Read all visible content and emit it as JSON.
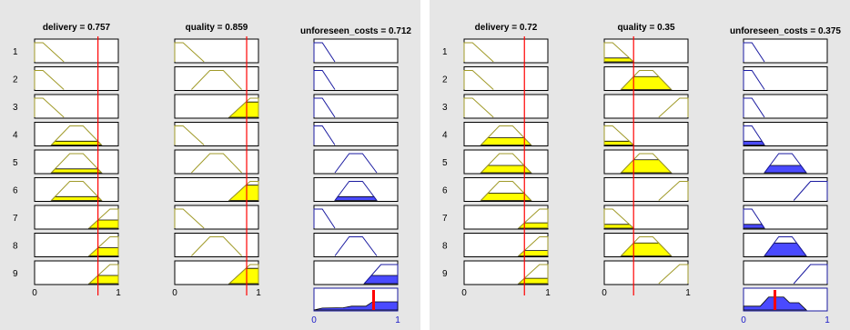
{
  "colors": {
    "background": "#e6e6e6",
    "input_fill": "#ffff00",
    "input_line": "#a09a28",
    "output_fill": "#4a4aff",
    "output_line": "#1a1aa0",
    "input_cursor": "#ff0000",
    "output_result_bar": "#ff0000"
  },
  "panels": [
    {
      "inputs": [
        {
          "name": "delivery",
          "header": "delivery = 0.757",
          "value": 0.757,
          "axis": {
            "min_label": "0",
            "max_label": "1",
            "range": [
              0,
              1
            ]
          },
          "mfs": [
            {
              "shape": [
                0,
                0,
                0.1,
                0.35
              ],
              "degree": 0
            },
            {
              "shape": [
                0,
                0,
                0.1,
                0.35
              ],
              "degree": 0
            },
            {
              "shape": [
                0,
                0,
                0.1,
                0.35
              ],
              "degree": 0
            },
            {
              "shape": [
                0.2,
                0.42,
                0.58,
                0.8
              ],
              "degree": 0.2
            },
            {
              "shape": [
                0.2,
                0.42,
                0.58,
                0.8
              ],
              "degree": 0.2
            },
            {
              "shape": [
                0.2,
                0.42,
                0.58,
                0.8
              ],
              "degree": 0.2
            },
            {
              "shape": [
                0.65,
                0.9,
                1,
                1
              ],
              "degree": 0.43
            },
            {
              "shape": [
                0.65,
                0.9,
                1,
                1
              ],
              "degree": 0.43
            },
            {
              "shape": [
                0.65,
                0.9,
                1,
                1
              ],
              "degree": 0.43
            }
          ]
        },
        {
          "name": "quality",
          "header": "quality = 0.859",
          "value": 0.859,
          "axis": {
            "min_label": "0",
            "max_label": "1",
            "range": [
              0,
              1
            ]
          },
          "mfs": [
            {
              "shape": [
                0,
                0,
                0.1,
                0.35
              ],
              "degree": 0
            },
            {
              "shape": [
                0.2,
                0.42,
                0.58,
                0.8
              ],
              "degree": 0
            },
            {
              "shape": [
                0.65,
                0.9,
                1,
                1
              ],
              "degree": 0.8
            },
            {
              "shape": [
                0,
                0,
                0.1,
                0.35
              ],
              "degree": 0
            },
            {
              "shape": [
                0.2,
                0.42,
                0.58,
                0.8
              ],
              "degree": 0
            },
            {
              "shape": [
                0.65,
                0.9,
                1,
                1
              ],
              "degree": 0.8
            },
            {
              "shape": [
                0,
                0,
                0.1,
                0.35
              ],
              "degree": 0
            },
            {
              "shape": [
                0.2,
                0.42,
                0.58,
                0.8
              ],
              "degree": 0
            },
            {
              "shape": [
                0.65,
                0.9,
                1,
                1
              ],
              "degree": 0.8
            }
          ]
        }
      ],
      "output": {
        "name": "unforeseen_costs",
        "header": "unforeseen_costs = 0.712",
        "value": 0.712,
        "axis": {
          "min_label": "0",
          "max_label": "1",
          "range": [
            0,
            1
          ]
        },
        "mfs": [
          {
            "shape": [
              0,
              0,
              0.1,
              0.25
            ],
            "degree": 0
          },
          {
            "shape": [
              0,
              0,
              0.1,
              0.25
            ],
            "degree": 0
          },
          {
            "shape": [
              0,
              0,
              0.1,
              0.25
            ],
            "degree": 0
          },
          {
            "shape": [
              0,
              0,
              0.1,
              0.25
            ],
            "degree": 0
          },
          {
            "shape": [
              0.25,
              0.42,
              0.58,
              0.75
            ],
            "degree": 0
          },
          {
            "shape": [
              0.25,
              0.42,
              0.58,
              0.75
            ],
            "degree": 0.2
          },
          {
            "shape": [
              0,
              0,
              0.1,
              0.25
            ],
            "degree": 0
          },
          {
            "shape": [
              0.25,
              0.42,
              0.58,
              0.75
            ],
            "degree": 0
          },
          {
            "shape": [
              0.6,
              0.8,
              1,
              1
            ],
            "degree": 0.43
          }
        ],
        "aggregate": [
          [
            0,
            0
          ],
          [
            0.1,
            0.1
          ],
          [
            0.35,
            0.12
          ],
          [
            0.45,
            0.2
          ],
          [
            0.62,
            0.2
          ],
          [
            0.7,
            0.43
          ],
          [
            1,
            0.43
          ],
          [
            1,
            0
          ]
        ]
      },
      "row_labels": [
        "1",
        "2",
        "3",
        "4",
        "5",
        "6",
        "7",
        "8",
        "9"
      ]
    },
    {
      "inputs": [
        {
          "name": "delivery",
          "header": "delivery = 0.72",
          "value": 0.72,
          "axis": {
            "min_label": "0",
            "max_label": "1",
            "range": [
              0,
              1
            ]
          },
          "mfs": [
            {
              "shape": [
                0,
                0,
                0.1,
                0.35
              ],
              "degree": 0
            },
            {
              "shape": [
                0,
                0,
                0.1,
                0.35
              ],
              "degree": 0
            },
            {
              "shape": [
                0,
                0,
                0.1,
                0.35
              ],
              "degree": 0
            },
            {
              "shape": [
                0.2,
                0.42,
                0.58,
                0.8
              ],
              "degree": 0.38
            },
            {
              "shape": [
                0.2,
                0.42,
                0.58,
                0.8
              ],
              "degree": 0.38
            },
            {
              "shape": [
                0.2,
                0.42,
                0.58,
                0.8
              ],
              "degree": 0.38
            },
            {
              "shape": [
                0.65,
                0.9,
                1,
                1
              ],
              "degree": 0.28
            },
            {
              "shape": [
                0.65,
                0.9,
                1,
                1
              ],
              "degree": 0.28
            },
            {
              "shape": [
                0.65,
                0.9,
                1,
                1
              ],
              "degree": 0.28
            }
          ]
        },
        {
          "name": "quality",
          "header": "quality = 0.35",
          "value": 0.35,
          "axis": {
            "min_label": "0",
            "max_label": "1",
            "range": [
              0,
              1
            ]
          },
          "mfs": [
            {
              "shape": [
                0,
                0,
                0.1,
                0.35
              ],
              "degree": 0.2
            },
            {
              "shape": [
                0.2,
                0.42,
                0.58,
                0.8
              ],
              "degree": 0.68
            },
            {
              "shape": [
                0.65,
                0.9,
                1,
                1
              ],
              "degree": 0
            },
            {
              "shape": [
                0,
                0,
                0.1,
                0.35
              ],
              "degree": 0.2
            },
            {
              "shape": [
                0.2,
                0.42,
                0.58,
                0.8
              ],
              "degree": 0.68
            },
            {
              "shape": [
                0.65,
                0.9,
                1,
                1
              ],
              "degree": 0
            },
            {
              "shape": [
                0,
                0,
                0.1,
                0.35
              ],
              "degree": 0.2
            },
            {
              "shape": [
                0.2,
                0.42,
                0.58,
                0.8
              ],
              "degree": 0.68
            },
            {
              "shape": [
                0.65,
                0.9,
                1,
                1
              ],
              "degree": 0
            }
          ]
        }
      ],
      "output": {
        "name": "unforeseen_costs",
        "header": "unforeseen_costs = 0.375",
        "value": 0.375,
        "axis": {
          "min_label": "0",
          "max_label": "1",
          "range": [
            0,
            1
          ]
        },
        "mfs": [
          {
            "shape": [
              0,
              0,
              0.1,
              0.25
            ],
            "degree": 0
          },
          {
            "shape": [
              0,
              0,
              0.1,
              0.25
            ],
            "degree": 0
          },
          {
            "shape": [
              0,
              0,
              0.1,
              0.25
            ],
            "degree": 0
          },
          {
            "shape": [
              0,
              0,
              0.1,
              0.25
            ],
            "degree": 0.2
          },
          {
            "shape": [
              0.25,
              0.42,
              0.58,
              0.75
            ],
            "degree": 0.38
          },
          {
            "shape": [
              0.6,
              0.8,
              1,
              1
            ],
            "degree": 0
          },
          {
            "shape": [
              0,
              0,
              0.1,
              0.25
            ],
            "degree": 0.2
          },
          {
            "shape": [
              0.25,
              0.42,
              0.58,
              0.75
            ],
            "degree": 0.68
          },
          {
            "shape": [
              0.6,
              0.8,
              1,
              1
            ],
            "degree": 0
          }
        ],
        "aggregate": [
          [
            0,
            0
          ],
          [
            0,
            0.2
          ],
          [
            0.2,
            0.2
          ],
          [
            0.3,
            0.68
          ],
          [
            0.48,
            0.68
          ],
          [
            0.55,
            0.38
          ],
          [
            0.66,
            0.38
          ],
          [
            0.75,
            0
          ],
          [
            0.75,
            0
          ]
        ]
      },
      "row_labels": [
        "1",
        "2",
        "3",
        "4",
        "5",
        "6",
        "7",
        "8",
        "9"
      ]
    }
  ]
}
